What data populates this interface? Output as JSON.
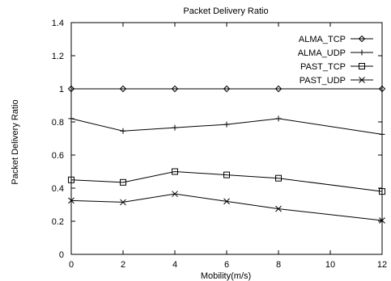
{
  "chart_data": {
    "type": "line",
    "title": "Packet Delivery Ratio",
    "xlabel": "Mobility(m/s)",
    "ylabel": "Packet Delivery Ratio",
    "x": [
      0,
      2,
      4,
      6,
      8,
      12
    ],
    "xlim": [
      0,
      12
    ],
    "ylim": [
      0,
      1.4
    ],
    "xticks": [
      "0",
      "2",
      "4",
      "6",
      "8",
      "10",
      "12"
    ],
    "yticks": [
      "0",
      "0.2",
      "0.4",
      "0.6",
      "0.8",
      "1",
      "1.2",
      "1.4"
    ],
    "grid": false,
    "legend_position": "top-right",
    "series": [
      {
        "name": "ALMA_TCP",
        "marker": "diamond",
        "values": [
          1.0,
          1.0,
          1.0,
          1.0,
          1.0,
          1.0
        ]
      },
      {
        "name": "ALMA_UDP",
        "marker": "plus",
        "values": [
          0.82,
          0.745,
          0.765,
          0.785,
          0.82,
          0.725
        ]
      },
      {
        "name": "PAST_TCP",
        "marker": "square",
        "values": [
          0.45,
          0.435,
          0.5,
          0.48,
          0.46,
          0.38
        ]
      },
      {
        "name": "PAST_UDP",
        "marker": "cross",
        "values": [
          0.325,
          0.315,
          0.365,
          0.32,
          0.275,
          0.205
        ]
      }
    ]
  }
}
